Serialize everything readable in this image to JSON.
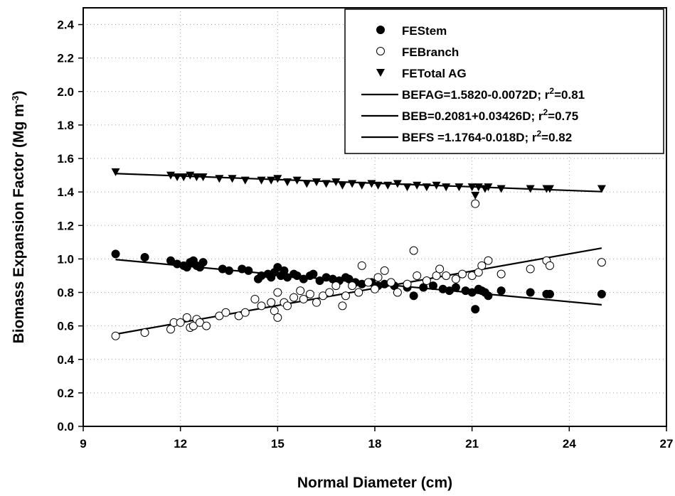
{
  "chart_data": {
    "type": "scatter",
    "xlabel": "Normal Diameter (cm)",
    "ylabel_main": "Biomass Expansion Factor (Mg m",
    "ylabel_sup": "-3",
    "ylabel_end": ")",
    "xlim": [
      9,
      27
    ],
    "ylim": [
      0,
      2.5
    ],
    "xticks": [
      9,
      12,
      15,
      18,
      21,
      24,
      27
    ],
    "yticks": [
      0.0,
      0.2,
      0.4,
      0.6,
      0.8,
      1.0,
      1.2,
      1.4,
      1.6,
      1.8,
      2.0,
      2.2,
      2.4
    ],
    "ytick_labels": [
      "0.0",
      "0.2",
      "0.4",
      "0.6",
      "0.8",
      "1.0",
      "1.2",
      "1.4",
      "1.6",
      "1.8",
      "2.0",
      "2.2",
      "2.4"
    ],
    "grid": true,
    "legend_position": "top-right",
    "legend": [
      {
        "kind": "marker",
        "marker": "filled-circle",
        "label": "FEStem"
      },
      {
        "kind": "marker",
        "marker": "open-circle",
        "label": "FEBranch"
      },
      {
        "kind": "marker",
        "marker": "filled-triangle-down",
        "label": "FETotal AG"
      },
      {
        "kind": "line",
        "pre": "BEFAG=1.5820-0.0072D; r",
        "sup": "2",
        "post": "=0.81"
      },
      {
        "kind": "line",
        "pre": "BEB=0.2081+0.03426D; r",
        "sup": "2",
        "post": "=0.75"
      },
      {
        "kind": "line",
        "pre": "BEFS =1.1764-0.018D; r",
        "sup": "2",
        "post": "=0.82"
      }
    ],
    "series": [
      {
        "name": "FEStem",
        "marker": "filled-circle",
        "points": [
          [
            10.0,
            1.03
          ],
          [
            10.9,
            1.01
          ],
          [
            11.7,
            0.99
          ],
          [
            11.9,
            0.97
          ],
          [
            12.1,
            0.96
          ],
          [
            12.2,
            0.95
          ],
          [
            12.3,
            0.98
          ],
          [
            12.4,
            0.99
          ],
          [
            12.5,
            0.96
          ],
          [
            12.6,
            0.95
          ],
          [
            12.7,
            0.98
          ],
          [
            13.3,
            0.94
          ],
          [
            13.5,
            0.93
          ],
          [
            13.9,
            0.94
          ],
          [
            14.1,
            0.93
          ],
          [
            14.4,
            0.88
          ],
          [
            14.5,
            0.9
          ],
          [
            14.7,
            0.91
          ],
          [
            14.8,
            0.89
          ],
          [
            14.9,
            0.92
          ],
          [
            15.0,
            0.95
          ],
          [
            15.1,
            0.9
          ],
          [
            15.2,
            0.93
          ],
          [
            15.3,
            0.89
          ],
          [
            15.5,
            0.91
          ],
          [
            15.6,
            0.9
          ],
          [
            15.8,
            0.88
          ],
          [
            16.0,
            0.9
          ],
          [
            16.1,
            0.91
          ],
          [
            16.3,
            0.87
          ],
          [
            16.5,
            0.89
          ],
          [
            16.7,
            0.88
          ],
          [
            16.9,
            0.87
          ],
          [
            17.1,
            0.89
          ],
          [
            17.2,
            0.88
          ],
          [
            17.4,
            0.86
          ],
          [
            17.6,
            0.85
          ],
          [
            17.9,
            0.86
          ],
          [
            18.1,
            0.84
          ],
          [
            18.3,
            0.85
          ],
          [
            18.6,
            0.84
          ],
          [
            19.0,
            0.83
          ],
          [
            19.2,
            0.78
          ],
          [
            19.5,
            0.83
          ],
          [
            19.8,
            0.84
          ],
          [
            20.1,
            0.82
          ],
          [
            20.3,
            0.81
          ],
          [
            20.5,
            0.83
          ],
          [
            20.8,
            0.81
          ],
          [
            21.0,
            0.8
          ],
          [
            21.1,
            0.7
          ],
          [
            21.2,
            0.82
          ],
          [
            21.3,
            0.81
          ],
          [
            21.4,
            0.8
          ],
          [
            21.5,
            0.78
          ],
          [
            21.9,
            0.81
          ],
          [
            22.8,
            0.8
          ],
          [
            23.3,
            0.79
          ],
          [
            23.4,
            0.79
          ],
          [
            25.0,
            0.79
          ]
        ]
      },
      {
        "name": "FEBranch",
        "marker": "open-circle",
        "points": [
          [
            10.0,
            0.54
          ],
          [
            10.9,
            0.56
          ],
          [
            11.7,
            0.58
          ],
          [
            11.8,
            0.62
          ],
          [
            12.0,
            0.62
          ],
          [
            12.2,
            0.65
          ],
          [
            12.3,
            0.59
          ],
          [
            12.4,
            0.6
          ],
          [
            12.5,
            0.64
          ],
          [
            12.6,
            0.62
          ],
          [
            12.8,
            0.6
          ],
          [
            13.2,
            0.66
          ],
          [
            13.4,
            0.68
          ],
          [
            13.8,
            0.66
          ],
          [
            14.0,
            0.68
          ],
          [
            14.3,
            0.76
          ],
          [
            14.5,
            0.72
          ],
          [
            14.8,
            0.74
          ],
          [
            14.9,
            0.69
          ],
          [
            15.0,
            0.65
          ],
          [
            15.0,
            0.8
          ],
          [
            15.2,
            0.74
          ],
          [
            15.3,
            0.72
          ],
          [
            15.5,
            0.77
          ],
          [
            15.7,
            0.81
          ],
          [
            15.8,
            0.76
          ],
          [
            16.0,
            0.79
          ],
          [
            16.2,
            0.74
          ],
          [
            16.4,
            0.78
          ],
          [
            16.6,
            0.8
          ],
          [
            16.8,
            0.84
          ],
          [
            17.0,
            0.72
          ],
          [
            17.1,
            0.78
          ],
          [
            17.3,
            0.84
          ],
          [
            17.5,
            0.8
          ],
          [
            17.6,
            0.96
          ],
          [
            17.8,
            0.86
          ],
          [
            18.0,
            0.82
          ],
          [
            18.1,
            0.89
          ],
          [
            18.3,
            0.93
          ],
          [
            18.5,
            0.86
          ],
          [
            18.7,
            0.8
          ],
          [
            19.0,
            0.85
          ],
          [
            19.2,
            1.05
          ],
          [
            19.3,
            0.9
          ],
          [
            19.6,
            0.87
          ],
          [
            19.9,
            0.9
          ],
          [
            20.0,
            0.94
          ],
          [
            20.2,
            0.9
          ],
          [
            20.5,
            0.88
          ],
          [
            20.7,
            0.91
          ],
          [
            21.0,
            0.9
          ],
          [
            21.1,
            1.33
          ],
          [
            21.2,
            0.92
          ],
          [
            21.3,
            0.96
          ],
          [
            21.5,
            0.99
          ],
          [
            21.9,
            0.91
          ],
          [
            22.8,
            0.94
          ],
          [
            23.3,
            0.99
          ],
          [
            23.4,
            0.96
          ],
          [
            25.0,
            0.98
          ]
        ]
      },
      {
        "name": "FETotal AG",
        "marker": "filled-triangle-down",
        "points": [
          [
            10.0,
            1.52
          ],
          [
            11.7,
            1.5
          ],
          [
            11.9,
            1.49
          ],
          [
            12.1,
            1.49
          ],
          [
            12.3,
            1.5
          ],
          [
            12.5,
            1.49
          ],
          [
            12.7,
            1.49
          ],
          [
            13.2,
            1.48
          ],
          [
            13.6,
            1.48
          ],
          [
            14.0,
            1.47
          ],
          [
            14.5,
            1.47
          ],
          [
            14.8,
            1.47
          ],
          [
            15.0,
            1.48
          ],
          [
            15.3,
            1.46
          ],
          [
            15.6,
            1.47
          ],
          [
            15.9,
            1.45
          ],
          [
            16.2,
            1.46
          ],
          [
            16.5,
            1.45
          ],
          [
            16.8,
            1.46
          ],
          [
            17.0,
            1.44
          ],
          [
            17.3,
            1.45
          ],
          [
            17.6,
            1.44
          ],
          [
            17.9,
            1.45
          ],
          [
            18.1,
            1.44
          ],
          [
            18.4,
            1.44
          ],
          [
            18.7,
            1.45
          ],
          [
            19.0,
            1.43
          ],
          [
            19.3,
            1.44
          ],
          [
            19.6,
            1.43
          ],
          [
            19.9,
            1.44
          ],
          [
            20.2,
            1.43
          ],
          [
            20.6,
            1.43
          ],
          [
            21.0,
            1.43
          ],
          [
            21.1,
            1.38
          ],
          [
            21.2,
            1.43
          ],
          [
            21.4,
            1.42
          ],
          [
            21.5,
            1.43
          ],
          [
            21.9,
            1.42
          ],
          [
            22.8,
            1.42
          ],
          [
            23.3,
            1.42
          ],
          [
            23.4,
            1.42
          ],
          [
            25.0,
            1.42
          ]
        ]
      }
    ],
    "fit_lines": [
      {
        "intercept": 1.582,
        "slope": -0.0072,
        "x_range": [
          10,
          25
        ]
      },
      {
        "intercept": 0.2081,
        "slope": 0.03426,
        "x_range": [
          10,
          25
        ]
      },
      {
        "intercept": 1.1764,
        "slope": -0.018,
        "x_range": [
          10,
          25
        ]
      }
    ]
  }
}
